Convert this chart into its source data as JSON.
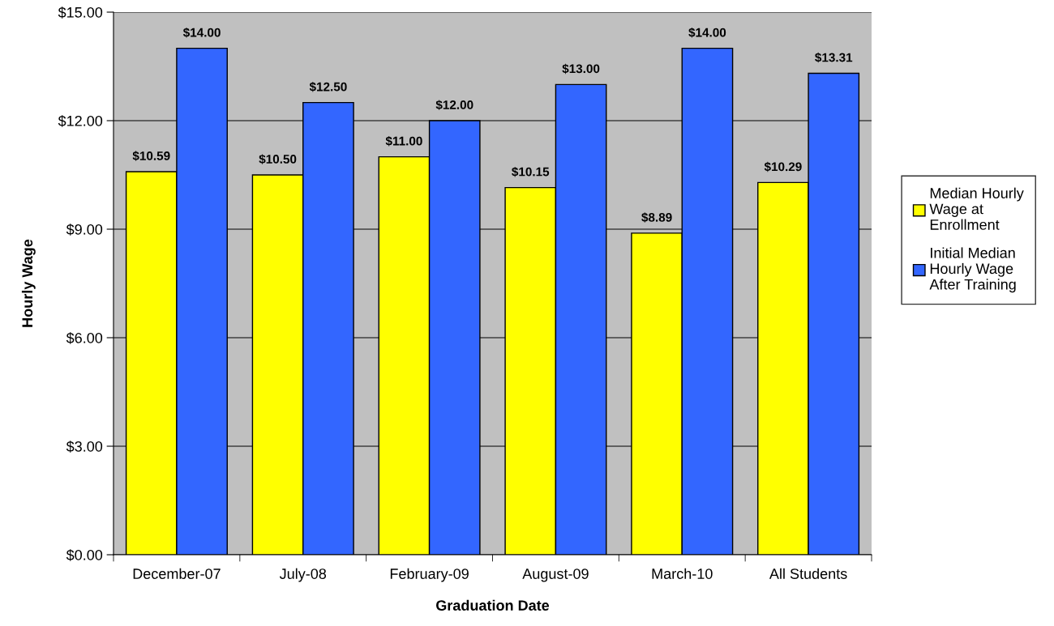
{
  "chart_data": {
    "type": "bar",
    "xlabel": "Graduation Date",
    "ylabel": "Hourly Wage",
    "categories": [
      "December-07",
      "July-08",
      "February-09",
      "August-09",
      "March-10",
      "All Students"
    ],
    "series": [
      {
        "name": "Median Hourly Wage at Enrollment",
        "color": "#ffff00",
        "values": [
          10.59,
          10.5,
          11.0,
          10.15,
          8.89,
          10.29
        ],
        "value_labels": [
          "$10.59",
          "$10.50",
          "$11.00",
          "$10.15",
          "$8.89",
          "$10.29"
        ]
      },
      {
        "name": "Initial Median Hourly Wage After Training",
        "color": "#3366ff",
        "values": [
          14.0,
          12.5,
          12.0,
          13.0,
          14.0,
          13.31
        ],
        "value_labels": [
          "$14.00",
          "$12.50",
          "$12.00",
          "$13.00",
          "$14.00",
          "$13.31"
        ]
      }
    ],
    "ylim": [
      0,
      15
    ],
    "yticks": [
      {
        "value": 0,
        "label": "$0.00"
      },
      {
        "value": 3,
        "label": "$3.00"
      },
      {
        "value": 6,
        "label": "$6.00"
      },
      {
        "value": 9,
        "label": "$9.00"
      },
      {
        "value": 12,
        "label": "$12.00"
      },
      {
        "value": 15,
        "label": "$15.00"
      }
    ],
    "grid": "y",
    "legend": "right"
  }
}
